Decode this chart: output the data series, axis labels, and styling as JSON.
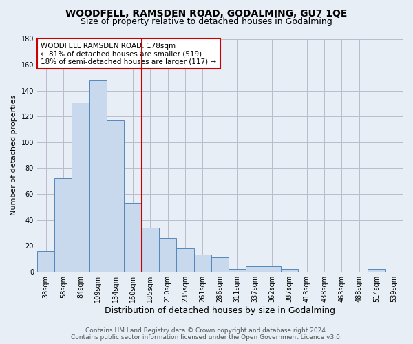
{
  "title": "WOODFELL, RAMSDEN ROAD, GODALMING, GU7 1QE",
  "subtitle": "Size of property relative to detached houses in Godalming",
  "xlabel": "Distribution of detached houses by size in Godalming",
  "ylabel": "Number of detached properties",
  "categories": [
    "33sqm",
    "58sqm",
    "84sqm",
    "109sqm",
    "134sqm",
    "160sqm",
    "185sqm",
    "210sqm",
    "235sqm",
    "261sqm",
    "286sqm",
    "311sqm",
    "337sqm",
    "362sqm",
    "387sqm",
    "413sqm",
    "438sqm",
    "463sqm",
    "488sqm",
    "514sqm",
    "539sqm"
  ],
  "values": [
    16,
    72,
    131,
    148,
    117,
    53,
    34,
    26,
    18,
    13,
    11,
    2,
    4,
    4,
    2,
    0,
    0,
    0,
    0,
    2,
    0
  ],
  "bar_color": "#c8d9ee",
  "bar_edge_color": "#5588bb",
  "grid_color": "#bbbbcc",
  "bg_color": "#e8eef5",
  "property_line_color": "#cc0000",
  "annotation_text": "WOODFELL RAMSDEN ROAD: 178sqm\n← 81% of detached houses are smaller (519)\n18% of semi-detached houses are larger (117) →",
  "annotation_box_color": "#ffffff",
  "annotation_box_edge": "#cc0000",
  "ylim": [
    0,
    180
  ],
  "yticks": [
    0,
    20,
    40,
    60,
    80,
    100,
    120,
    140,
    160,
    180
  ],
  "footer_line1": "Contains HM Land Registry data © Crown copyright and database right 2024.",
  "footer_line2": "Contains public sector information licensed under the Open Government Licence v3.0.",
  "title_fontsize": 10,
  "subtitle_fontsize": 9,
  "xlabel_fontsize": 9,
  "ylabel_fontsize": 8,
  "tick_fontsize": 7,
  "annotation_fontsize": 7.5,
  "footer_fontsize": 6.5
}
